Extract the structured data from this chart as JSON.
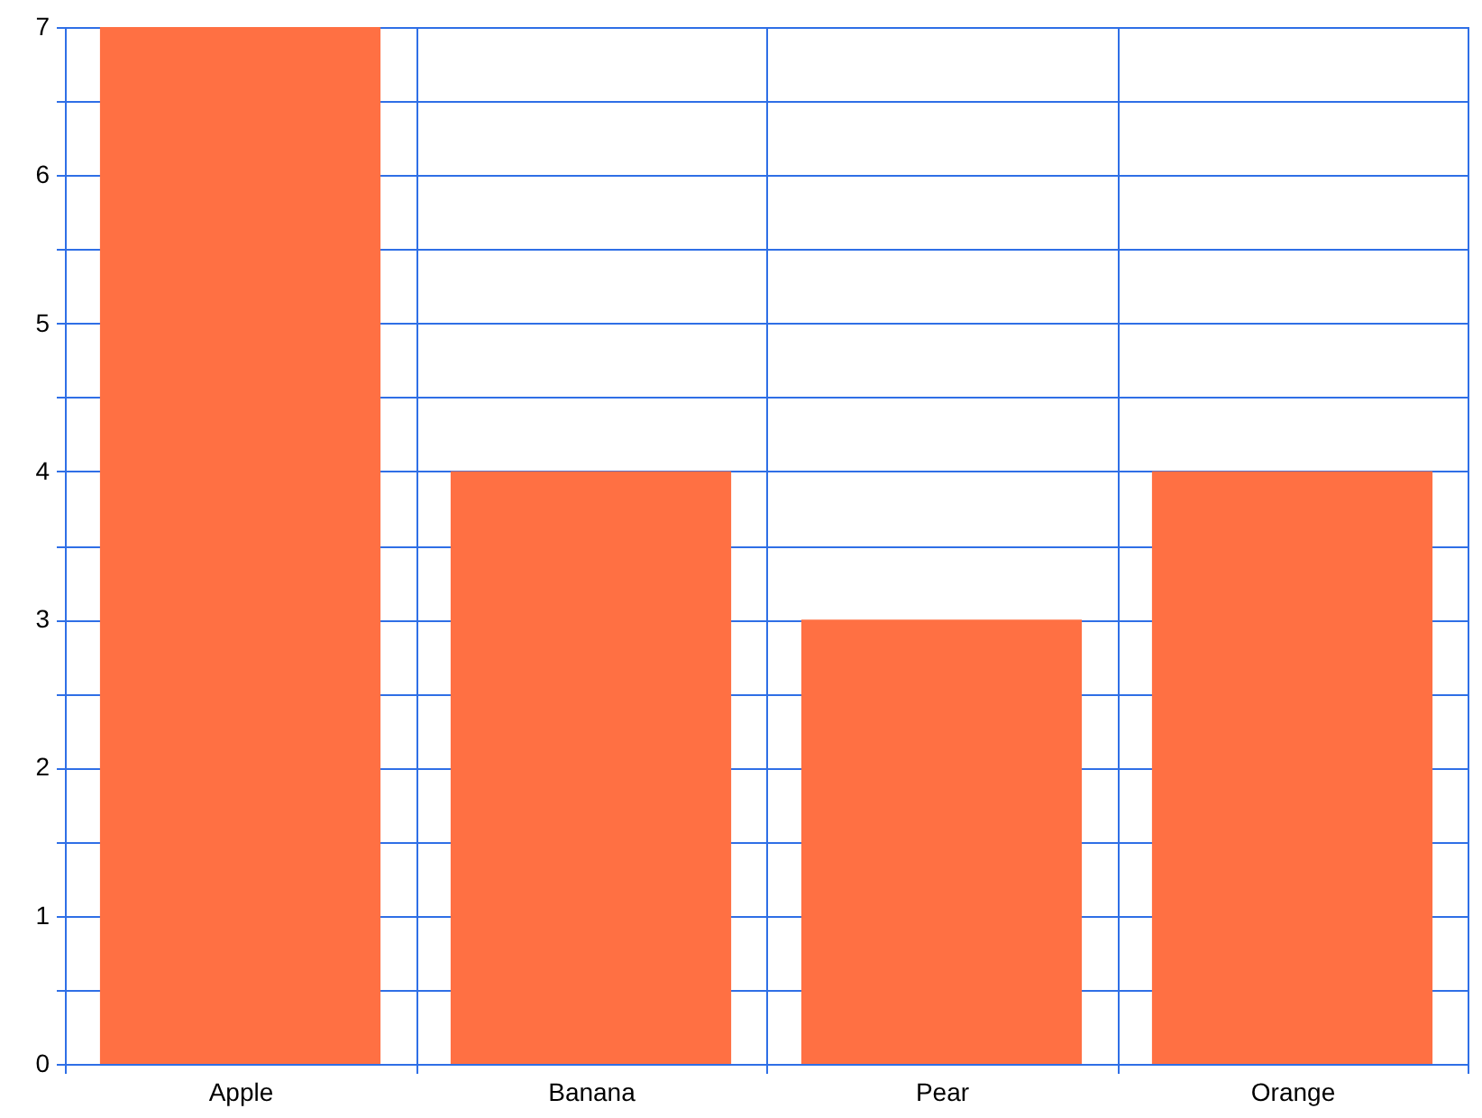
{
  "chart_data": {
    "type": "bar",
    "categories": [
      "Apple",
      "Banana",
      "Pear",
      "Orange"
    ],
    "values": [
      7,
      4,
      3,
      4
    ],
    "color": "#ff7043",
    "ylim": [
      0,
      7
    ],
    "yticks": [
      0,
      {
        "value": 0.5,
        "label": null
      },
      1,
      {
        "value": 1.5,
        "label": null
      },
      2,
      {
        "value": 2.5,
        "label": null
      },
      3,
      {
        "value": 3.5,
        "label": null
      },
      4,
      {
        "value": 4.5,
        "label": null
      },
      5,
      {
        "value": 5.5,
        "label": null
      },
      6,
      {
        "value": 6.5,
        "label": null
      },
      7
    ],
    "grid": true
  }
}
